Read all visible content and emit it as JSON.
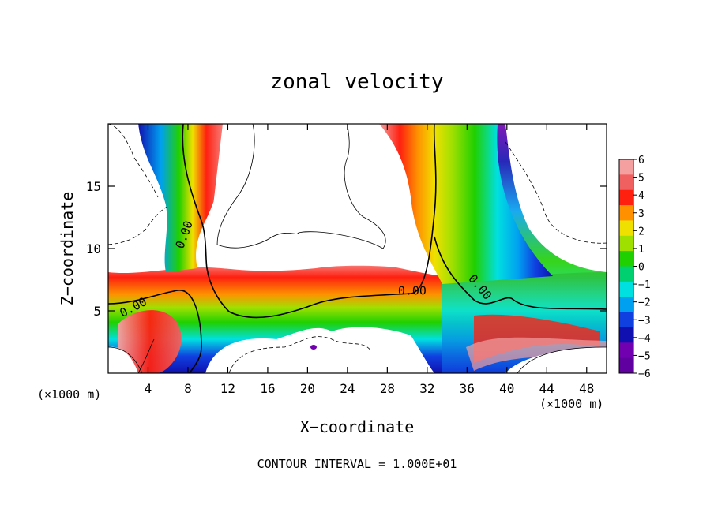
{
  "chart_data": {
    "type": "heatmap",
    "title": "zonal velocity",
    "xlabel": "X−coordinate",
    "ylabel": "Z−coordinate",
    "x_unit_label": "(×1000 m)",
    "y_unit_label": "(×1000 m)",
    "footer": "CONTOUR INTERVAL = 1.000E+01",
    "xlim": [
      0,
      50
    ],
    "ylim": [
      0,
      20
    ],
    "x_ticks": [
      4,
      8,
      12,
      16,
      20,
      24,
      28,
      32,
      36,
      40,
      44,
      48
    ],
    "x_tick_labels": [
      "4",
      "8",
      "12",
      "16",
      "20",
      "24",
      "28",
      "32",
      "36",
      "40",
      "44",
      "48"
    ],
    "y_ticks": [
      5,
      10,
      15
    ],
    "y_tick_labels": [
      "5",
      "10",
      "15"
    ],
    "contour_labels": [
      {
        "text": "0.00",
        "x": 2.7,
        "y": 5.0,
        "angle": -28
      },
      {
        "text": "0.00",
        "x": 8.0,
        "y": 11.0,
        "angle": -70
      },
      {
        "text": "0.00",
        "x": 30.5,
        "y": 6.3,
        "angle": 0
      },
      {
        "text": "0.00",
        "x": 37.0,
        "y": 6.7,
        "angle": 50
      }
    ],
    "colorbar": {
      "levels": [
        6,
        5,
        4,
        3,
        2,
        1,
        0,
        -1,
        -2,
        -3,
        -4,
        -5,
        -6
      ],
      "labels": [
        "6",
        "5",
        "4",
        "3",
        "2",
        "1",
        "0",
        "−1",
        "−2",
        "−3",
        "−4",
        "−5",
        "−6"
      ],
      "colors": [
        "#f4a0a0",
        "#f06060",
        "#ff2010",
        "#ff9000",
        "#f0e000",
        "#a0e000",
        "#20d000",
        "#00d070",
        "#00e0e0",
        "#00a0f0",
        "#1040e0",
        "#1010b0",
        "#7000b0",
        "#6000a0"
      ]
    }
  }
}
